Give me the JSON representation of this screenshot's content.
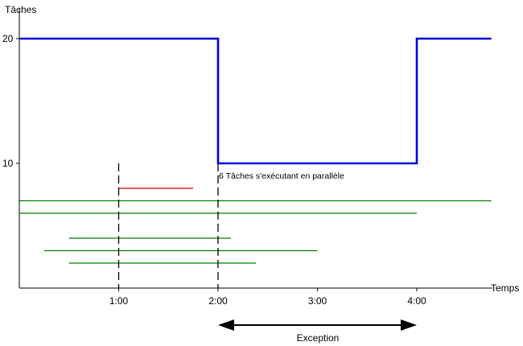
{
  "chart_data": {
    "type": "line",
    "title": "",
    "ylabel": "Tâches",
    "xlabel": "Temps",
    "x_ticks": [
      "1:00",
      "2:00",
      "3:00",
      "4:00"
    ],
    "y_ticks": [
      10,
      20
    ],
    "xlim": [
      0,
      4.8
    ],
    "ylim": [
      0,
      20
    ],
    "capacity_series": {
      "color": "#0000dd",
      "points": [
        [
          0,
          20
        ],
        [
          2,
          20
        ],
        [
          2,
          10
        ],
        [
          4,
          10
        ],
        [
          4,
          20
        ],
        [
          4.75,
          20
        ]
      ]
    },
    "tasks": [
      {
        "start": 1.0,
        "end": 1.75,
        "y": 8.0,
        "color": "#e00000"
      },
      {
        "start": 0.0,
        "end": 4.75,
        "y": 7.0,
        "color": "#008000"
      },
      {
        "start": 0.0,
        "end": 4.0,
        "y": 6.0,
        "color": "#008000"
      },
      {
        "start": 0.5,
        "end": 2.13,
        "y": 4.0,
        "color": "#008000"
      },
      {
        "start": 0.25,
        "end": 3.0,
        "y": 3.0,
        "color": "#008000"
      },
      {
        "start": 0.5,
        "end": 2.38,
        "y": 2.0,
        "color": "#008000"
      }
    ],
    "markers": [
      1,
      2
    ],
    "annotation": {
      "text": "6 Tâches s'exécutant en parallèle",
      "x": 2.0,
      "y": 9.0
    },
    "exception_range": {
      "label": "Exception",
      "start": 2,
      "end": 4
    }
  }
}
